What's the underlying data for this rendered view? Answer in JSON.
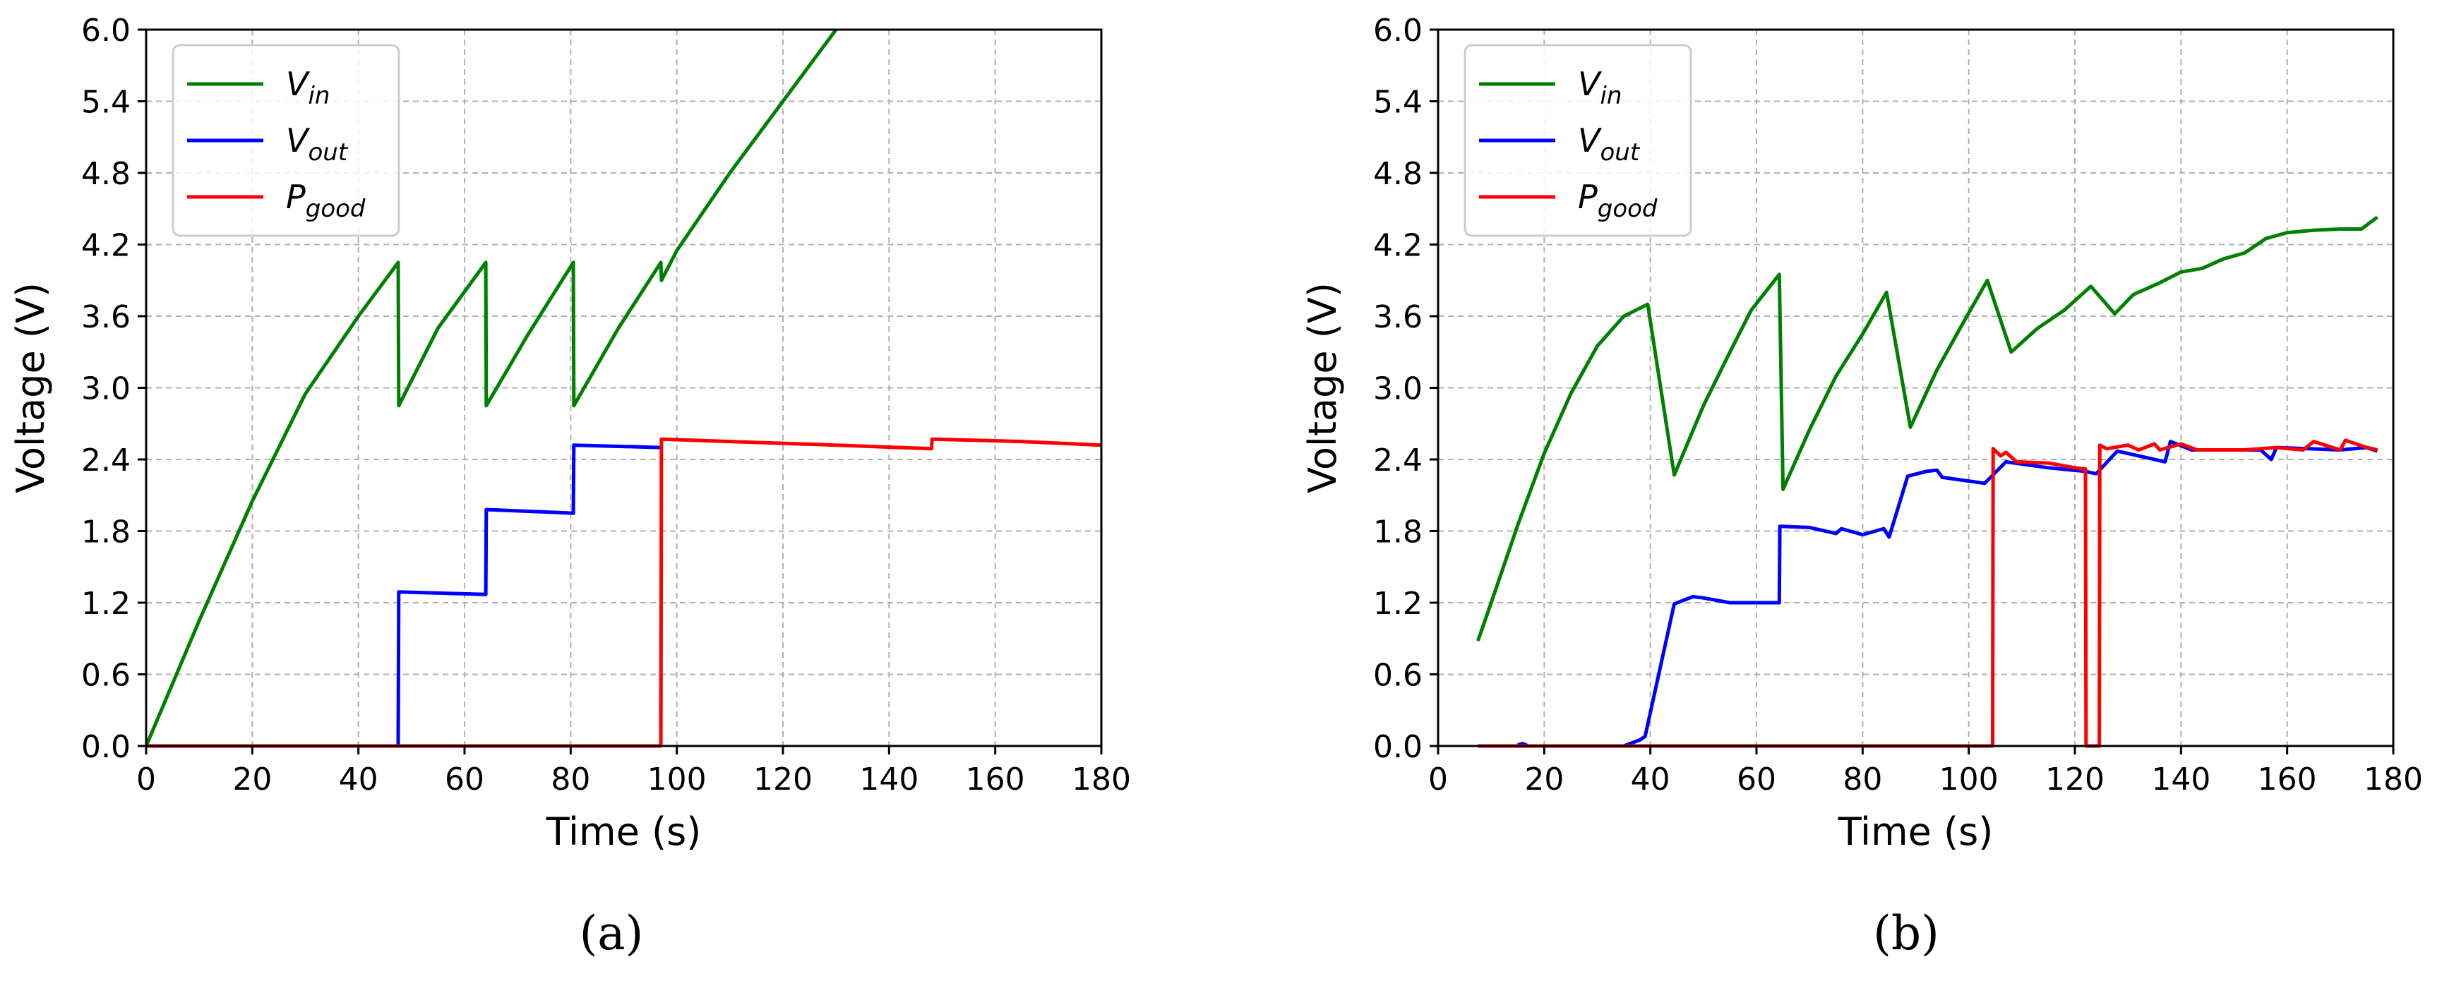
{
  "figure": {
    "captions": [
      "(a)",
      "(b)"
    ]
  },
  "colors": {
    "vin": "#008000",
    "vout": "#0000ff",
    "pgood": "#ff0000",
    "grid": "#b0b0b0",
    "axis": "#000000"
  },
  "chart_data": [
    {
      "type": "line",
      "panel": "a",
      "caption": "(a)",
      "title": "",
      "xlabel": "Time (s)",
      "ylabel": "Voltage (V)",
      "xlim": [
        0,
        180
      ],
      "ylim": [
        0,
        6.0
      ],
      "xticks": [
        0,
        20,
        40,
        60,
        80,
        100,
        120,
        140,
        160,
        180
      ],
      "yticks": [
        "0.0",
        "0.6",
        "1.2",
        "1.8",
        "2.4",
        "3.0",
        "3.6",
        "4.2",
        "4.8",
        "5.4",
        "6.0"
      ],
      "grid": true,
      "legend_position": "upper left",
      "legend": [
        {
          "main": "V",
          "sub": "in",
          "series": "vin"
        },
        {
          "main": "V",
          "sub": "out",
          "series": "vout"
        },
        {
          "main": "P",
          "sub": "good",
          "series": "pgood"
        }
      ],
      "series": [
        {
          "name": "Vin",
          "key": "vin",
          "x": [
            0,
            10,
            20,
            30,
            40,
            47.5,
            47.6,
            55,
            64,
            64.1,
            72,
            80.5,
            80.6,
            89,
            97,
            97.1,
            100,
            110,
            120,
            130
          ],
          "y": [
            0,
            1.05,
            2.05,
            2.95,
            3.6,
            4.05,
            2.85,
            3.5,
            4.05,
            2.85,
            3.45,
            4.05,
            2.85,
            3.5,
            4.05,
            3.9,
            4.15,
            4.8,
            5.4,
            6.0
          ]
        },
        {
          "name": "Vout",
          "key": "vout",
          "x": [
            0,
            47.5,
            47.6,
            64,
            64.1,
            80.5,
            80.6,
            97
          ],
          "y": [
            0,
            0,
            1.29,
            1.27,
            1.98,
            1.95,
            2.52,
            2.5
          ]
        },
        {
          "name": "Pgood",
          "key": "pgood",
          "x": [
            0,
            97,
            97.1,
            110,
            130,
            148,
            148.1,
            165,
            180
          ],
          "y": [
            0,
            0,
            2.57,
            2.55,
            2.52,
            2.49,
            2.57,
            2.55,
            2.52
          ]
        }
      ]
    },
    {
      "type": "line",
      "panel": "b",
      "caption": "(b)",
      "title": "",
      "xlabel": "Time (s)",
      "ylabel": "Voltage (V)",
      "xlim": [
        0,
        180
      ],
      "ylim": [
        0,
        6.0
      ],
      "xticks": [
        0,
        20,
        40,
        60,
        80,
        100,
        120,
        140,
        160,
        180
      ],
      "yticks": [
        "0.0",
        "0.6",
        "1.2",
        "1.8",
        "2.4",
        "3.0",
        "3.6",
        "4.2",
        "4.8",
        "5.4",
        "6.0"
      ],
      "grid": true,
      "legend_position": "upper left",
      "legend": [
        {
          "main": "V",
          "sub": "in",
          "series": "vin"
        },
        {
          "main": "V",
          "sub": "out",
          "series": "vout"
        },
        {
          "main": "P",
          "sub": "good",
          "series": "pgood"
        }
      ],
      "series": [
        {
          "name": "Vin",
          "key": "vin",
          "x": [
            7.5,
            10,
            15,
            20,
            25,
            30,
            35,
            39.5,
            44.5,
            50,
            55,
            59,
            64.3,
            65,
            70,
            75,
            80,
            84.5,
            89,
            94,
            99,
            103.5,
            108,
            113,
            118,
            123,
            127.5,
            131,
            136,
            140,
            144,
            148,
            152,
            156,
            160,
            165,
            170,
            174,
            177
          ],
          "y": [
            0.88,
            1.2,
            1.85,
            2.45,
            2.95,
            3.35,
            3.6,
            3.7,
            2.27,
            2.85,
            3.3,
            3.65,
            3.95,
            2.15,
            2.65,
            3.1,
            3.45,
            3.8,
            2.67,
            3.15,
            3.55,
            3.9,
            3.3,
            3.5,
            3.65,
            3.85,
            3.62,
            3.78,
            3.88,
            3.97,
            4.0,
            4.08,
            4.13,
            4.25,
            4.3,
            4.32,
            4.33,
            4.33,
            4.43
          ]
        },
        {
          "name": "Vout",
          "key": "vout",
          "x": [
            15,
            16,
            17,
            35,
            38,
            39,
            44.5,
            48,
            50,
            55,
            64.3,
            64.4,
            70,
            75,
            76,
            80,
            84,
            85,
            88.5,
            92,
            94,
            95,
            103,
            107,
            115,
            122,
            124,
            128,
            135,
            137,
            138,
            142,
            155,
            157,
            158,
            170,
            175,
            177
          ],
          "y": [
            0.01,
            0.02,
            0.0,
            0.0,
            0.05,
            0.08,
            1.19,
            1.25,
            1.24,
            1.2,
            1.2,
            1.84,
            1.83,
            1.78,
            1.82,
            1.77,
            1.82,
            1.75,
            2.26,
            2.3,
            2.31,
            2.25,
            2.2,
            2.38,
            2.33,
            2.3,
            2.28,
            2.47,
            2.4,
            2.38,
            2.55,
            2.48,
            2.48,
            2.4,
            2.5,
            2.48,
            2.5,
            2.47
          ]
        },
        {
          "name": "Pgood",
          "key": "pgood",
          "x": [
            7.5,
            104.5,
            104.6,
            106,
            107,
            109,
            115,
            120,
            122,
            122.1,
            122.2,
            124.6,
            124.7,
            126,
            130,
            132,
            135,
            136,
            140,
            143,
            148,
            152,
            158,
            163,
            165,
            170,
            171,
            175,
            177
          ],
          "y": [
            0.0,
            0.0,
            2.49,
            2.43,
            2.46,
            2.38,
            2.37,
            2.33,
            2.32,
            0.0,
            0.0,
            0.0,
            2.52,
            2.49,
            2.52,
            2.48,
            2.53,
            2.48,
            2.53,
            2.48,
            2.48,
            2.48,
            2.5,
            2.48,
            2.55,
            2.48,
            2.56,
            2.5,
            2.48
          ]
        }
      ]
    }
  ]
}
